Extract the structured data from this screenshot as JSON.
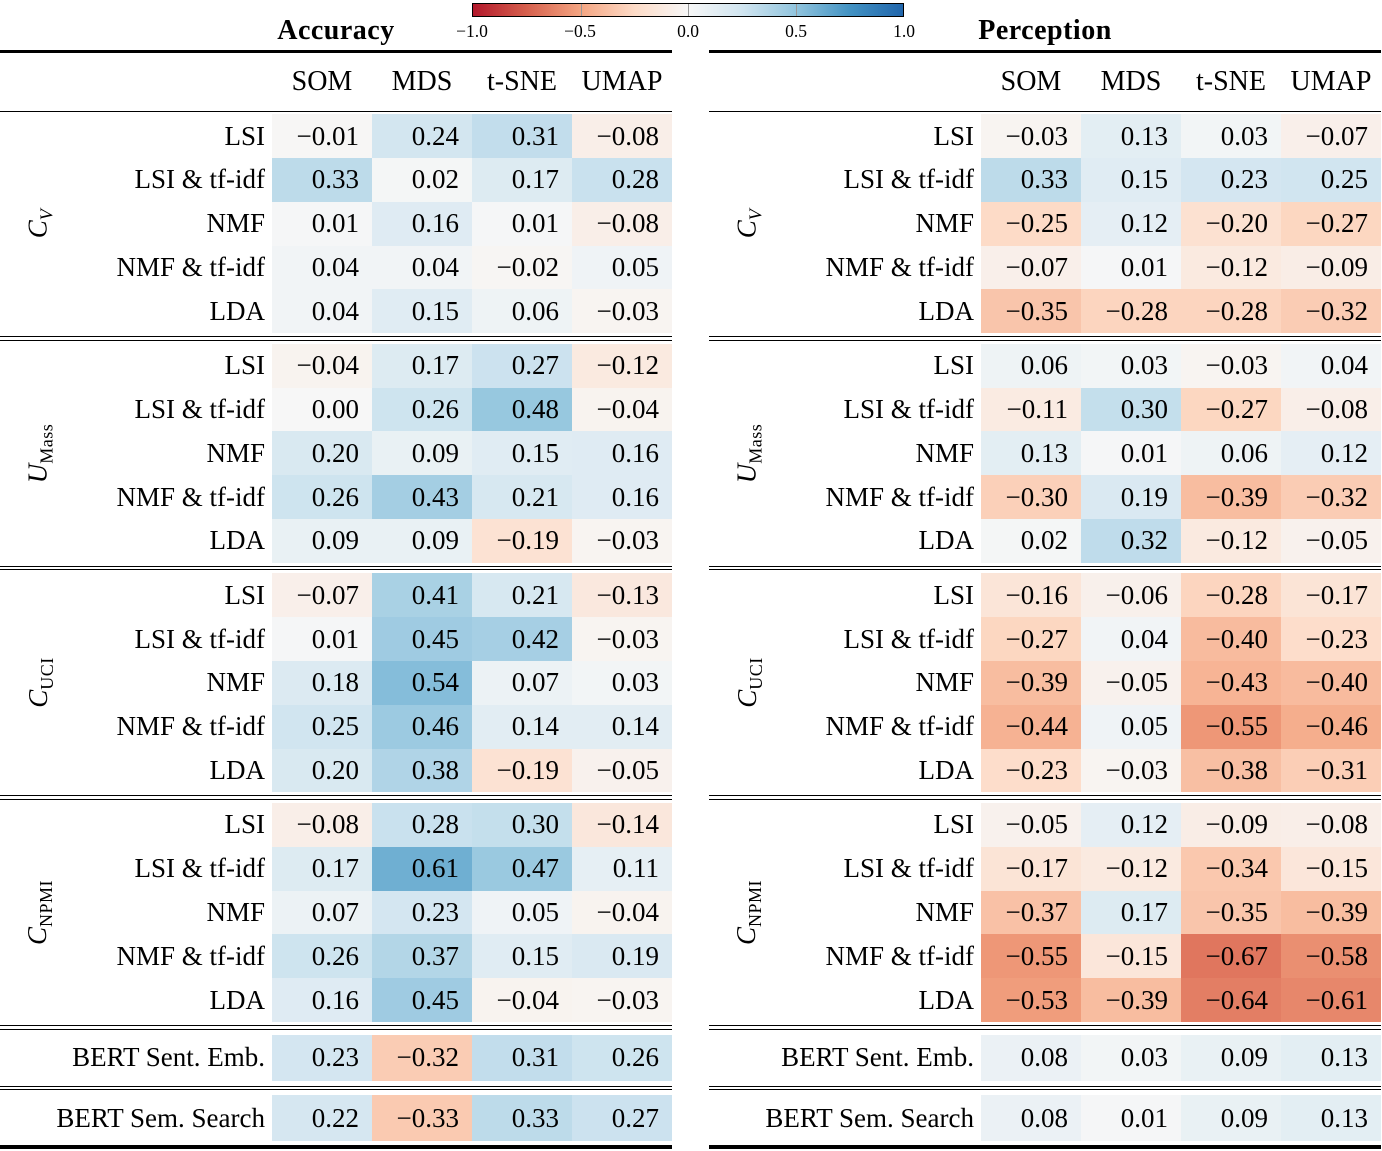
{
  "colorbar": {
    "tick_labels": [
      "−1.0",
      "−0.5",
      "0.0",
      "0.5",
      "1.0"
    ],
    "tick_values": [
      -1.0,
      -0.5,
      0.0,
      0.5,
      1.0
    ],
    "stops": [
      "#b2182b",
      "#d6604d",
      "#f4a582",
      "#fddbc7",
      "#f7f7f7",
      "#d1e5f0",
      "#92c5de",
      "#4393c3",
      "#2166ac"
    ]
  },
  "chart_data": {
    "type": "heatmap",
    "colormap": "RdBu",
    "value_range": [
      -1,
      1
    ],
    "columns": [
      "SOM",
      "MDS",
      "t-SNE",
      "UMAP"
    ],
    "row_labels": [
      "LSI",
      "LSI & tf-idf",
      "NMF",
      "NMF & tf-idf",
      "LDA"
    ],
    "panels": [
      {
        "title": "Accuracy",
        "groups": [
          {
            "label_main": "C",
            "label_sub": "V",
            "sub_style": "italic",
            "rows": [
              {
                "label": "LSI",
                "values": [
                  -0.01,
                  0.24,
                  0.31,
                  -0.08
                ]
              },
              {
                "label": "LSI & tf-idf",
                "values": [
                  0.33,
                  0.02,
                  0.17,
                  0.28
                ]
              },
              {
                "label": "NMF",
                "values": [
                  0.01,
                  0.16,
                  0.01,
                  -0.08
                ]
              },
              {
                "label": "NMF & tf-idf",
                "values": [
                  0.04,
                  0.04,
                  -0.02,
                  0.05
                ]
              },
              {
                "label": "LDA",
                "values": [
                  0.04,
                  0.15,
                  0.06,
                  -0.03
                ]
              }
            ]
          },
          {
            "label_main": "U",
            "label_sub": "Mass",
            "sub_style": "upright",
            "rows": [
              {
                "label": "LSI",
                "values": [
                  -0.04,
                  0.17,
                  0.27,
                  -0.12
                ]
              },
              {
                "label": "LSI & tf-idf",
                "values": [
                  0.0,
                  0.26,
                  0.48,
                  -0.04
                ]
              },
              {
                "label": "NMF",
                "values": [
                  0.2,
                  0.09,
                  0.15,
                  0.16
                ]
              },
              {
                "label": "NMF & tf-idf",
                "values": [
                  0.26,
                  0.43,
                  0.21,
                  0.16
                ]
              },
              {
                "label": "LDA",
                "values": [
                  0.09,
                  0.09,
                  -0.19,
                  -0.03
                ]
              }
            ]
          },
          {
            "label_main": "C",
            "label_sub": "UCI",
            "sub_style": "upright",
            "rows": [
              {
                "label": "LSI",
                "values": [
                  -0.07,
                  0.41,
                  0.21,
                  -0.13
                ]
              },
              {
                "label": "LSI & tf-idf",
                "values": [
                  0.01,
                  0.45,
                  0.42,
                  -0.03
                ]
              },
              {
                "label": "NMF",
                "values": [
                  0.18,
                  0.54,
                  0.07,
                  0.03
                ]
              },
              {
                "label": "NMF & tf-idf",
                "values": [
                  0.25,
                  0.46,
                  0.14,
                  0.14
                ]
              },
              {
                "label": "LDA",
                "values": [
                  0.2,
                  0.38,
                  -0.19,
                  -0.05
                ]
              }
            ]
          },
          {
            "label_main": "C",
            "label_sub": "NPMI",
            "sub_style": "upright",
            "rows": [
              {
                "label": "LSI",
                "values": [
                  -0.08,
                  0.28,
                  0.3,
                  -0.14
                ]
              },
              {
                "label": "LSI & tf-idf",
                "values": [
                  0.17,
                  0.61,
                  0.47,
                  0.11
                ]
              },
              {
                "label": "NMF",
                "values": [
                  0.07,
                  0.23,
                  0.05,
                  -0.04
                ]
              },
              {
                "label": "NMF & tf-idf",
                "values": [
                  0.26,
                  0.37,
                  0.15,
                  0.19
                ]
              },
              {
                "label": "LDA",
                "values": [
                  0.16,
                  0.45,
                  -0.04,
                  -0.03
                ]
              }
            ]
          }
        ],
        "footer_rows": [
          {
            "label": "BERT Sent. Emb.",
            "values": [
              0.23,
              -0.32,
              0.31,
              0.26
            ]
          },
          {
            "label": "BERT Sem. Search",
            "values": [
              0.22,
              -0.33,
              0.33,
              0.27
            ]
          }
        ]
      },
      {
        "title": "Perception",
        "groups": [
          {
            "label_main": "C",
            "label_sub": "V",
            "sub_style": "italic",
            "rows": [
              {
                "label": "LSI",
                "values": [
                  -0.03,
                  0.13,
                  0.03,
                  -0.07
                ]
              },
              {
                "label": "LSI & tf-idf",
                "values": [
                  0.33,
                  0.15,
                  0.23,
                  0.25
                ]
              },
              {
                "label": "NMF",
                "values": [
                  -0.25,
                  0.12,
                  -0.2,
                  -0.27
                ]
              },
              {
                "label": "NMF & tf-idf",
                "values": [
                  -0.07,
                  0.01,
                  -0.12,
                  -0.09
                ]
              },
              {
                "label": "LDA",
                "values": [
                  -0.35,
                  -0.28,
                  -0.28,
                  -0.32
                ]
              }
            ]
          },
          {
            "label_main": "U",
            "label_sub": "Mass",
            "sub_style": "upright",
            "rows": [
              {
                "label": "LSI",
                "values": [
                  0.06,
                  0.03,
                  -0.03,
                  0.04
                ]
              },
              {
                "label": "LSI & tf-idf",
                "values": [
                  -0.11,
                  0.3,
                  -0.27,
                  -0.08
                ]
              },
              {
                "label": "NMF",
                "values": [
                  0.13,
                  0.01,
                  0.06,
                  0.12
                ]
              },
              {
                "label": "NMF & tf-idf",
                "values": [
                  -0.3,
                  0.19,
                  -0.39,
                  -0.32
                ]
              },
              {
                "label": "LDA",
                "values": [
                  0.02,
                  0.32,
                  -0.12,
                  -0.05
                ]
              }
            ]
          },
          {
            "label_main": "C",
            "label_sub": "UCI",
            "sub_style": "upright",
            "rows": [
              {
                "label": "LSI",
                "values": [
                  -0.16,
                  -0.06,
                  -0.28,
                  -0.17
                ]
              },
              {
                "label": "LSI & tf-idf",
                "values": [
                  -0.27,
                  0.04,
                  -0.4,
                  -0.23
                ]
              },
              {
                "label": "NMF",
                "values": [
                  -0.39,
                  -0.05,
                  -0.43,
                  -0.4
                ]
              },
              {
                "label": "NMF & tf-idf",
                "values": [
                  -0.44,
                  0.05,
                  -0.55,
                  -0.46
                ]
              },
              {
                "label": "LDA",
                "values": [
                  -0.23,
                  -0.03,
                  -0.38,
                  -0.31
                ]
              }
            ]
          },
          {
            "label_main": "C",
            "label_sub": "NPMI",
            "sub_style": "upright",
            "rows": [
              {
                "label": "LSI",
                "values": [
                  -0.05,
                  0.12,
                  -0.09,
                  -0.08
                ]
              },
              {
                "label": "LSI & tf-idf",
                "values": [
                  -0.17,
                  -0.12,
                  -0.34,
                  -0.15
                ]
              },
              {
                "label": "NMF",
                "values": [
                  -0.37,
                  0.17,
                  -0.35,
                  -0.39
                ]
              },
              {
                "label": "NMF & tf-idf",
                "values": [
                  -0.55,
                  -0.15,
                  -0.67,
                  -0.58
                ]
              },
              {
                "label": "LDA",
                "values": [
                  -0.53,
                  -0.39,
                  -0.64,
                  -0.61
                ]
              }
            ]
          }
        ],
        "footer_rows": [
          {
            "label": "BERT Sent. Emb.",
            "values": [
              0.08,
              0.03,
              0.09,
              0.13
            ]
          },
          {
            "label": "BERT Sem. Search",
            "values": [
              0.08,
              0.01,
              0.09,
              0.13
            ]
          }
        ]
      }
    ]
  }
}
